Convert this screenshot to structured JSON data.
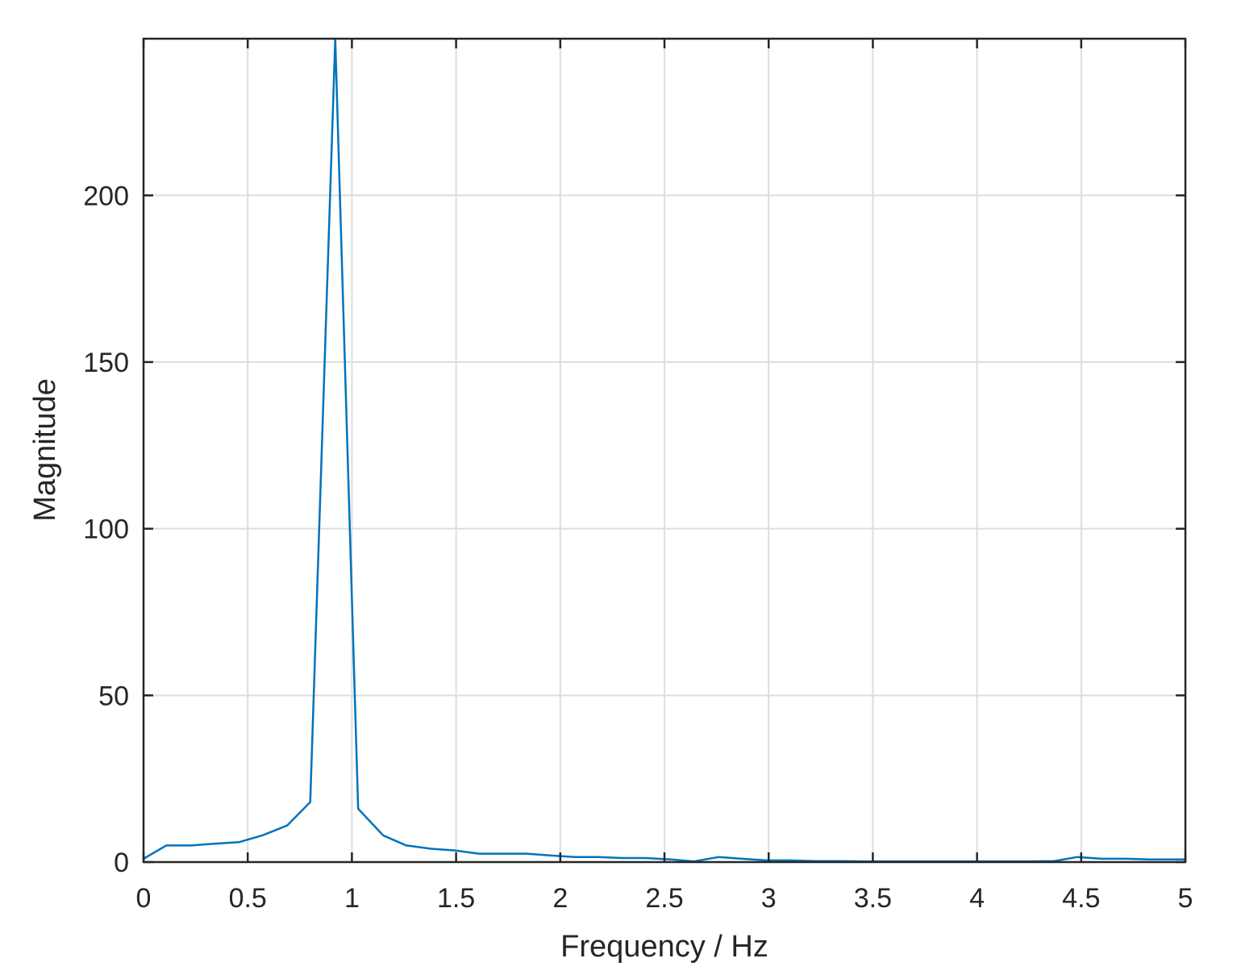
{
  "chart_data": {
    "type": "line",
    "title": "",
    "xlabel": "Frequency / Hz",
    "ylabel": "Magnitude",
    "xlim": [
      0,
      5
    ],
    "ylim": [
      0,
      247
    ],
    "grid": true,
    "x_ticks": [
      {
        "value": 0,
        "label": "0"
      },
      {
        "value": 0.5,
        "label": "0.5"
      },
      {
        "value": 1,
        "label": "1"
      },
      {
        "value": 1.5,
        "label": "1.5"
      },
      {
        "value": 2,
        "label": "2"
      },
      {
        "value": 2.5,
        "label": "2.5"
      },
      {
        "value": 3,
        "label": "3"
      },
      {
        "value": 3.5,
        "label": "3.5"
      },
      {
        "value": 4,
        "label": "4"
      },
      {
        "value": 4.5,
        "label": "4.5"
      },
      {
        "value": 5,
        "label": "5"
      }
    ],
    "y_ticks": [
      {
        "value": 0,
        "label": "0"
      },
      {
        "value": 50,
        "label": "50"
      },
      {
        "value": 100,
        "label": "100"
      },
      {
        "value": 150,
        "label": "150"
      },
      {
        "value": 200,
        "label": "200"
      }
    ],
    "series": [
      {
        "color": "#0072bd",
        "x": [
          0,
          0.11,
          0.23,
          0.34,
          0.46,
          0.57,
          0.69,
          0.8,
          0.92,
          1.03,
          1.15,
          1.26,
          1.38,
          1.49,
          1.61,
          1.72,
          1.84,
          1.95,
          2.07,
          2.18,
          2.3,
          2.41,
          2.53,
          2.64,
          2.76,
          2.87,
          2.99,
          3.1,
          3.22,
          3.33,
          3.45,
          3.56,
          3.68,
          3.79,
          3.91,
          4.02,
          4.14,
          4.25,
          4.37,
          4.48,
          4.6,
          4.71,
          4.83,
          4.94,
          5
        ],
        "y": [
          1,
          5,
          5,
          5.5,
          6,
          8,
          11,
          18,
          247,
          16,
          8,
          5,
          4,
          3.5,
          2.5,
          2.5,
          2.5,
          2,
          1.5,
          1.5,
          1.2,
          1.2,
          0.8,
          0.2,
          1.5,
          1,
          0.5,
          0.5,
          0.3,
          0.3,
          0.2,
          0.2,
          0.2,
          0.2,
          0.2,
          0.2,
          0.2,
          0.2,
          0.3,
          1.5,
          1,
          1,
          0.8,
          0.8,
          0.8
        ]
      }
    ]
  }
}
